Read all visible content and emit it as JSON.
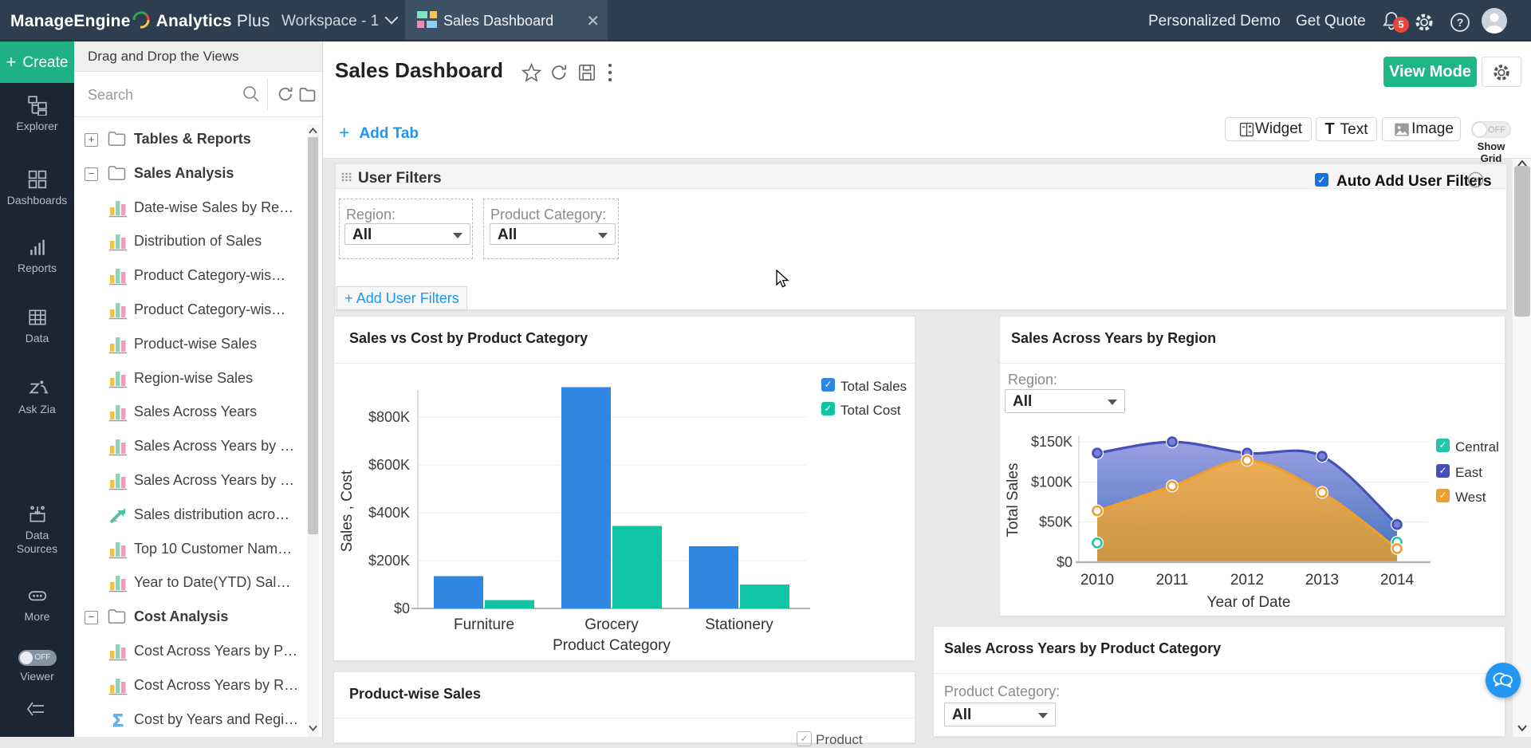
{
  "topbar": {
    "brand_bold": "ManageEngine",
    "brand_product": "Analytics",
    "brand_suffix": "Plus",
    "workspace": "Workspace - 1",
    "tab_title": "Sales Dashboard",
    "personalized_demo": "Personalized Demo",
    "get_quote": "Get Quote",
    "notification_count": "5"
  },
  "sidebar": {
    "create": "Create",
    "items": [
      {
        "name": "explorer",
        "label": "Explorer"
      },
      {
        "name": "dashboards",
        "label": "Dashboards"
      },
      {
        "name": "reports",
        "label": "Reports"
      },
      {
        "name": "data",
        "label": "Data"
      },
      {
        "name": "ask-zia",
        "label": "Ask Zia"
      },
      {
        "name": "data-sources",
        "label": "Data Sources"
      },
      {
        "name": "more",
        "label": "More"
      },
      {
        "name": "viewer",
        "label": "Viewer",
        "toggle": "OFF"
      }
    ]
  },
  "views_panel": {
    "header": "Drag and Drop the Views",
    "search_placeholder": "Search",
    "tree": [
      {
        "kind": "folder",
        "expander": "+",
        "label": "Tables & Reports"
      },
      {
        "kind": "folder",
        "expander": "−",
        "label": "Sales Analysis"
      },
      {
        "kind": "item",
        "icon": "bars",
        "label": "Date-wise Sales by Re…"
      },
      {
        "kind": "item",
        "icon": "bars",
        "label": "Distribution of Sales"
      },
      {
        "kind": "item",
        "icon": "bars",
        "label": "Product Category-wis…"
      },
      {
        "kind": "item",
        "icon": "bars",
        "label": "Product Category-wis…"
      },
      {
        "kind": "item",
        "icon": "bars",
        "label": "Product-wise Sales"
      },
      {
        "kind": "item",
        "icon": "bars",
        "label": "Region-wise Sales"
      },
      {
        "kind": "item",
        "icon": "bars",
        "label": "Sales Across Years"
      },
      {
        "kind": "item",
        "icon": "bars",
        "label": "Sales Across Years by …"
      },
      {
        "kind": "item",
        "icon": "bars",
        "label": "Sales Across Years by …"
      },
      {
        "kind": "item",
        "icon": "trend",
        "label": "Sales distribution acro…"
      },
      {
        "kind": "item",
        "icon": "bars",
        "label": "Top 10 Customer Nam…"
      },
      {
        "kind": "item",
        "icon": "bars",
        "label": "Year to Date(YTD) Sal…"
      },
      {
        "kind": "folder",
        "expander": "−",
        "label": "Cost Analysis"
      },
      {
        "kind": "item",
        "icon": "bars",
        "label": "Cost Across Years by P…"
      },
      {
        "kind": "item",
        "icon": "bars",
        "label": "Cost Across Years by R…"
      },
      {
        "kind": "item",
        "icon": "sigma",
        "label": "Cost by Years and Regi…"
      }
    ]
  },
  "page_header": {
    "title": "Sales Dashboard",
    "add_tab": "Add Tab",
    "view_mode": "View Mode",
    "widget": "Widget",
    "text": "Text",
    "image": "Image",
    "show_grid": "Show Grid",
    "show_grid_state": "OFF"
  },
  "user_filters": {
    "title": "User Filters",
    "auto_add": "Auto Add User Filters",
    "add_button": "+ Add User Filters",
    "filters": [
      {
        "label": "Region:",
        "value": "All"
      },
      {
        "label": "Product Category:",
        "value": "All"
      }
    ]
  },
  "cards": {
    "product_wise": {
      "title": "Product-wise Sales",
      "legend_partial": "Product"
    },
    "say_pc": {
      "title": "Sales Across Years by Product Category",
      "filter_label": "Product Category:",
      "filter_value": "All"
    }
  },
  "colors": {
    "accent_blue": "#1a97f5",
    "green": "#1eb687",
    "checkbox_blue": "#1474dd",
    "badge_red": "#e8453c"
  },
  "chart_data": [
    {
      "type": "bar",
      "title": "Sales vs Cost by Product Category",
      "categories": [
        "Furniture",
        "Grocery",
        "Stationery"
      ],
      "series": [
        {
          "name": "Total Sales",
          "color": "#2e87e0",
          "values": [
            135000,
            925000,
            260000
          ]
        },
        {
          "name": "Total Cost",
          "color": "#10c5a4",
          "values": [
            35000,
            345000,
            100000
          ]
        }
      ],
      "xlabel": "Product Category",
      "ylabel": "Sales , Cost",
      "ylim": [
        0,
        900000
      ],
      "yticks": [
        {
          "v": 0,
          "label": "$0"
        },
        {
          "v": 200000,
          "label": "$200K"
        },
        {
          "v": 400000,
          "label": "$400K"
        },
        {
          "v": 600000,
          "label": "$600K"
        },
        {
          "v": 800000,
          "label": "$800K"
        }
      ],
      "legend_checked": true
    },
    {
      "type": "area",
      "title": "Sales Across Years by Region",
      "filter_label": "Region:",
      "filter_value": "All",
      "x": [
        2010,
        2011,
        2012,
        2013,
        2014
      ],
      "series": [
        {
          "name": "Central",
          "color": "#25c5ac",
          "fill_top": "#58d6c0",
          "fill_bottom": "#25c5ac",
          "values": [
            24000,
            55000,
            74000,
            60000,
            25000
          ]
        },
        {
          "name": "East",
          "color": "#4450b8",
          "fill_top": "#9397de",
          "fill_bottom": "#3a6cbe",
          "values": [
            136000,
            150000,
            136000,
            132000,
            47000
          ]
        },
        {
          "name": "West",
          "color": "#f09d2e",
          "fill_top": "#f4b04b",
          "fill_bottom": "#d1963e",
          "values": [
            64000,
            95000,
            127000,
            87000,
            17000
          ]
        }
      ],
      "xlabel": "Year of Date",
      "ylabel": "Total Sales",
      "ylim": [
        0,
        150000
      ],
      "yticks": [
        {
          "v": 0,
          "label": "$0"
        },
        {
          "v": 50000,
          "label": "$50K"
        },
        {
          "v": 100000,
          "label": "$100K"
        },
        {
          "v": 150000,
          "label": "$150K"
        }
      ],
      "legend_checked": true
    }
  ]
}
